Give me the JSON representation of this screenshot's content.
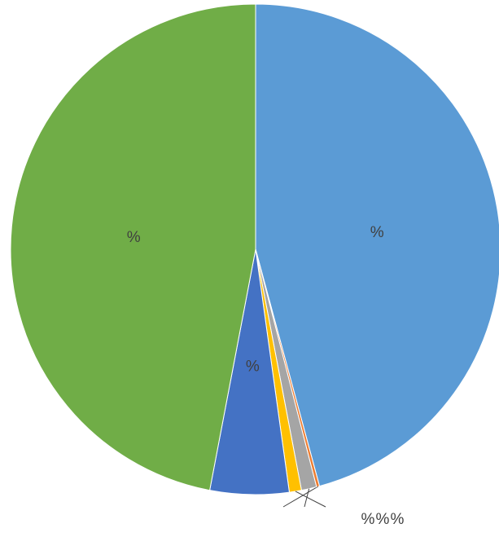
{
  "chart_data": {
    "type": "pie",
    "categories": [
      null,
      null,
      null,
      null,
      null,
      null
    ],
    "values": [
      45.8,
      0.2,
      1.0,
      0.8,
      5.2,
      47.0
    ],
    "value_labels": [
      "%",
      "%",
      "%",
      "%",
      "%",
      "%"
    ],
    "colors": [
      "#5b9bd5",
      "#ed7d31",
      "#a5a5a5",
      "#ffc000",
      "#4472c4",
      "#70ad47"
    ]
  }
}
